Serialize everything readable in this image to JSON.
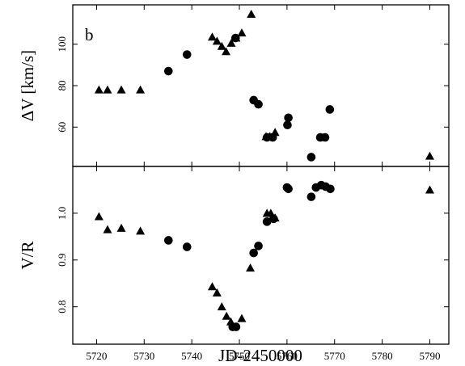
{
  "chart_data": [
    {
      "type": "scatter",
      "panel_label": "b",
      "ylabel": "ΔV [km/s]",
      "xlabel": "",
      "xlim": [
        5715,
        5794
      ],
      "ylim": [
        41,
        119
      ],
      "x_ticks": [
        5720,
        5730,
        5740,
        5750,
        5760,
        5770,
        5780,
        5790
      ],
      "y_ticks": [
        60,
        80,
        100
      ],
      "grid": false,
      "series": [
        {
          "marker": "triangle",
          "x": [
            5720.5,
            5722.3,
            5725.2,
            5729.2,
            5744.3,
            5745.3,
            5746.3,
            5747.2,
            5748.3,
            5749.3,
            5750.5,
            5752.5,
            5755.6,
            5756.4,
            5757.5,
            5790.0
          ],
          "y": [
            78,
            78,
            78,
            78,
            103.5,
            101.5,
            99,
            96.5,
            100.5,
            103,
            105.5,
            114.5,
            55.5,
            55.5,
            57.5,
            46
          ]
        },
        {
          "marker": "circle",
          "x": [
            5735.1,
            5739.0,
            5749.2,
            5753.0,
            5754.0,
            5755.8,
            5757.0,
            5760.1,
            5760.3,
            5765.1,
            5767.0,
            5768.0,
            5769.0
          ],
          "y": [
            87,
            95,
            103,
            73,
            71,
            55,
            55,
            61,
            64.5,
            45.5,
            55,
            55,
            68.5
          ]
        }
      ]
    },
    {
      "type": "scatter",
      "xlabel": "JD-2450000",
      "ylabel": "V/R",
      "xlim": [
        5715,
        5794
      ],
      "ylim": [
        0.72,
        1.1
      ],
      "x_ticks": [
        5720,
        5730,
        5740,
        5750,
        5760,
        5770,
        5780,
        5790
      ],
      "x_tick_labels": [
        "5720",
        "5730",
        "5740",
        "5750",
        "5760",
        "5770",
        "5780",
        "5790"
      ],
      "y_ticks": [
        0.8,
        0.9,
        1.0
      ],
      "y_tick_labels": [
        "0.8",
        "0.9",
        "1.0"
      ],
      "grid": false,
      "series": [
        {
          "marker": "triangle",
          "x": [
            5720.5,
            5722.3,
            5725.2,
            5729.2,
            5744.3,
            5745.3,
            5746.3,
            5747.3,
            5748.2,
            5750.5,
            5752.3,
            5755.8,
            5756.6,
            5757.5,
            5790.0
          ],
          "y": [
            0.993,
            0.965,
            0.968,
            0.962,
            0.843,
            0.83,
            0.8,
            0.78,
            0.768,
            0.775,
            0.883,
            1.0,
            1.0,
            0.99,
            1.05
          ]
        },
        {
          "marker": "circle",
          "x": [
            5735.1,
            5739.0,
            5748.6,
            5749.3,
            5753.0,
            5754.0,
            5755.8,
            5757.2,
            5760.0,
            5760.3,
            5765.1,
            5766.1,
            5767.2,
            5768.1,
            5769.1
          ],
          "y": [
            0.942,
            0.928,
            0.757,
            0.757,
            0.915,
            0.93,
            0.982,
            0.988,
            1.055,
            1.052,
            1.035,
            1.055,
            1.06,
            1.057,
            1.052
          ]
        }
      ]
    }
  ]
}
